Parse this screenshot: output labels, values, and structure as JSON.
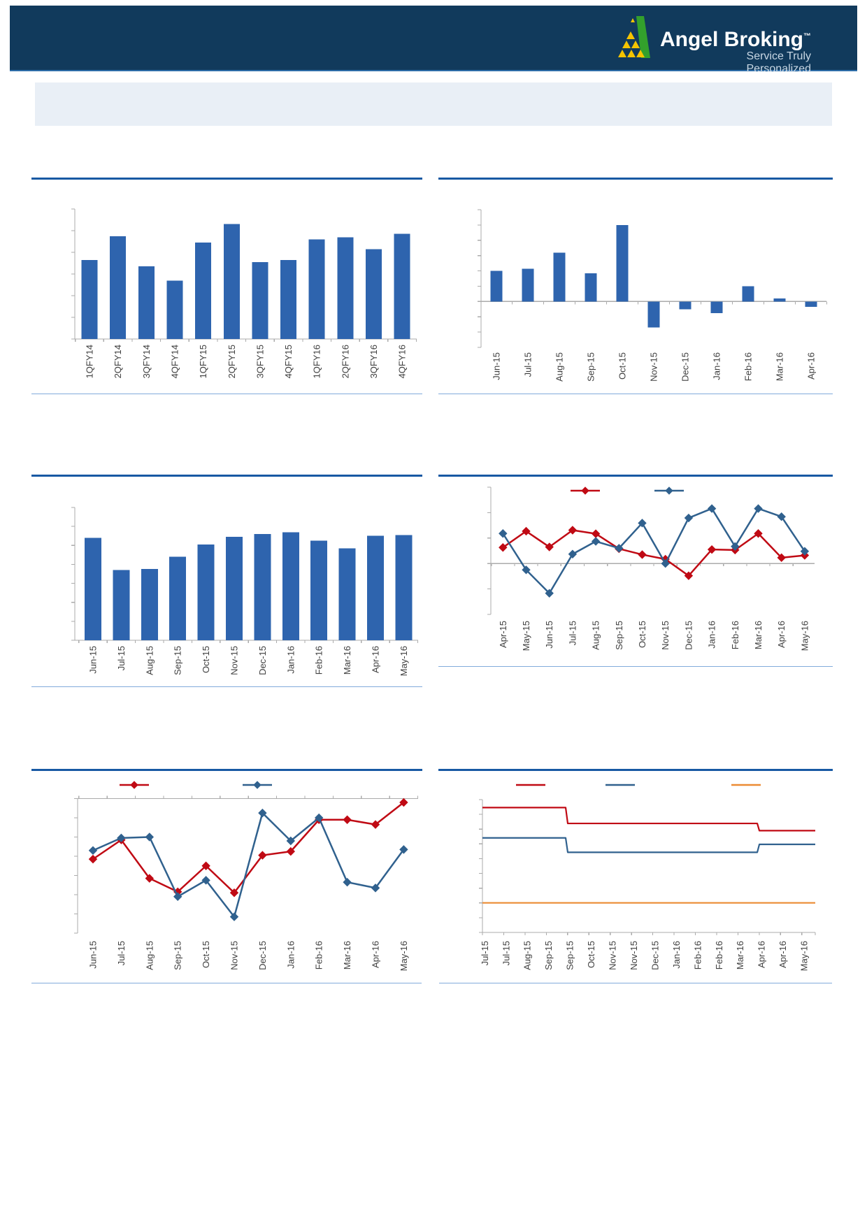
{
  "header": {
    "brand": "Angel Broking",
    "trademark": "™",
    "tagline": "Service Truly Personalized",
    "bg_color": "#113A5C",
    "logo_green": "#33A02C",
    "logo_yellow": "#F5C400"
  },
  "banner": {
    "bg_color": "#E9EFF6"
  },
  "styles": {
    "rule_thick": "#1859A3",
    "rule_thin": "#82ABDB",
    "bar_blue": "#2E64AE",
    "red": "#C00A14",
    "line_blue": "#30618E",
    "orange": "#EB8B33",
    "axis_gray": "#ABABAB",
    "label_gray": "#3F3F3F"
  },
  "chart_data": [
    {
      "id": "chart1-quarterly-bars",
      "type": "bar",
      "categories": [
        "1QFY14",
        "2QFY14",
        "3QFY14",
        "4QFY14",
        "1QFY15",
        "2QFY15",
        "3QFY15",
        "4QFY15",
        "1QFY16",
        "2QFY16",
        "3QFY16",
        "4QFY16"
      ],
      "values": [
        3.65,
        4.75,
        3.35,
        2.7,
        4.45,
        5.3,
        3.55,
        3.65,
        4.6,
        4.7,
        4.15,
        4.85
      ],
      "ylim": [
        0,
        6
      ],
      "y_ticks": 7,
      "bar_color": "bar_blue",
      "grid": false,
      "y_tick_labels_visible": false
    },
    {
      "id": "chart2-monthly-change-bars",
      "type": "bar",
      "categories": [
        "Jun-15",
        "Jul-15",
        "Aug-15",
        "Sep-15",
        "Oct-15",
        "Nov-15",
        "Dec-15",
        "Jan-16",
        "Feb-16",
        "Mar-16",
        "Apr-16"
      ],
      "values": [
        2.0,
        2.15,
        3.2,
        1.85,
        5.0,
        -1.7,
        -0.5,
        -0.75,
        1.0,
        0.2,
        -0.35
      ],
      "ylim": [
        -3,
        6
      ],
      "y_ticks": 10,
      "bar_color": "bar_blue",
      "grid": false,
      "y_tick_labels_visible": false
    },
    {
      "id": "chart3-monthly-level-bars",
      "type": "bar",
      "categories": [
        "Jun-15",
        "Jul-15",
        "Aug-15",
        "Sep-15",
        "Oct-15",
        "Nov-15",
        "Dec-15",
        "Jan-16",
        "Feb-16",
        "Mar-16",
        "Apr-16",
        "May-16"
      ],
      "values": [
        5.4,
        3.7,
        3.75,
        4.4,
        5.05,
        5.45,
        5.6,
        5.7,
        5.25,
        4.85,
        5.5,
        5.55
      ],
      "ylim": [
        0,
        7
      ],
      "y_ticks": 8,
      "bar_color": "bar_blue",
      "grid": false,
      "y_tick_labels_visible": false
    },
    {
      "id": "chart4-dual-line",
      "type": "line",
      "categories": [
        "Apr-15",
        "May-15",
        "Jun-15",
        "Jul-15",
        "Aug-15",
        "Sep-15",
        "Oct-15",
        "Nov-15",
        "Dec-15",
        "Jan-16",
        "Feb-16",
        "Mar-16",
        "Apr-16",
        "May-16"
      ],
      "series": [
        {
          "name": "red-series",
          "color": "red",
          "values": [
            0.63,
            1.27,
            0.65,
            1.31,
            1.17,
            0.58,
            0.35,
            0.17,
            -0.48,
            0.55,
            0.53,
            1.18,
            0.23,
            0.32
          ]
        },
        {
          "name": "blue-series",
          "color": "line_blue",
          "values": [
            1.18,
            -0.25,
            -1.17,
            0.37,
            0.87,
            0.6,
            1.59,
            0.0,
            1.79,
            2.16,
            0.67,
            2.16,
            1.84,
            0.48
          ]
        }
      ],
      "ylim": [
        -2,
        3
      ],
      "y_ticks": 6,
      "legend_position": "top",
      "legend_labels_visible": false,
      "y_tick_labels_visible": false
    },
    {
      "id": "chart5-dual-line",
      "type": "line",
      "categories": [
        "Jun-15",
        "Jul-15",
        "Aug-15",
        "Sep-15",
        "Oct-15",
        "Nov-15",
        "Dec-15",
        "Jan-16",
        "Feb-16",
        "Mar-16",
        "Apr-16",
        "May-16"
      ],
      "series": [
        {
          "name": "red-series",
          "color": "red",
          "values": [
            3.85,
            4.85,
            2.85,
            2.15,
            3.5,
            2.1,
            4.05,
            4.25,
            5.9,
            5.9,
            5.65,
            6.8
          ]
        },
        {
          "name": "blue-series",
          "color": "line_blue",
          "values": [
            4.3,
            4.95,
            5.0,
            1.9,
            2.75,
            0.85,
            6.25,
            4.8,
            6.0,
            2.65,
            2.35,
            4.35
          ]
        }
      ],
      "ylim": [
        0,
        7
      ],
      "y_ticks": 8,
      "legend_position": "top",
      "legend_labels_visible": false,
      "y_tick_labels_visible": false
    },
    {
      "id": "chart6-step-lines",
      "type": "step",
      "categories": [
        "Jul-15",
        "Jul-15",
        "Aug-15",
        "Sep-15",
        "Sep-15",
        "Oct-15",
        "Nov-15",
        "Nov-15",
        "Dec-15",
        "Jan-16",
        "Feb-16",
        "Feb-16",
        "Mar-16",
        "Apr-16",
        "Apr-16",
        "May-16"
      ],
      "series": [
        {
          "name": "red-band",
          "color": "red",
          "segments": [
            {
              "until_index": 3,
              "value": 8.65
            },
            {
              "until_index": 12,
              "value": 7.55
            },
            {
              "until_index": 15,
              "value": 7.05
            }
          ]
        },
        {
          "name": "blue-band",
          "color": "line_blue",
          "segments": [
            {
              "until_index": 3,
              "value": 6.55
            },
            {
              "until_index": 12,
              "value": 5.55
            },
            {
              "until_index": 15,
              "value": 6.1
            }
          ]
        },
        {
          "name": "orange-band",
          "color": "orange",
          "segments": [
            {
              "until_index": 15,
              "value": 2.05
            }
          ]
        }
      ],
      "ylim": [
        0,
        9.2
      ],
      "y_ticks": 10,
      "legend_position": "top",
      "legend_labels_visible": false,
      "y_tick_labels_visible": false
    }
  ]
}
